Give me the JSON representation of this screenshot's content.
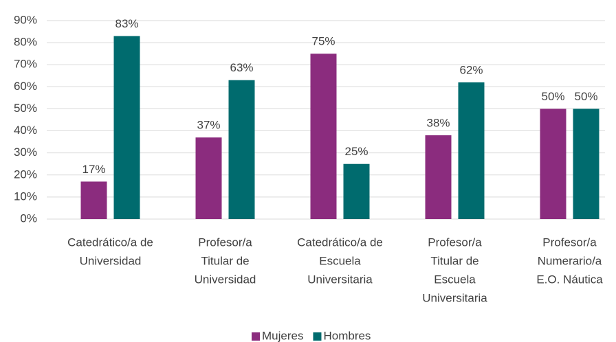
{
  "chart_data": {
    "type": "bar",
    "categories": [
      [
        "Catedrático/a de",
        "Universidad"
      ],
      [
        "Profesor/a",
        "Titular de",
        "Universidad"
      ],
      [
        "Catedrático/a de",
        "Escuela",
        "Universitaria"
      ],
      [
        "Profesor/a",
        "Titular de",
        "Escuela",
        "Universitaria"
      ],
      [
        "Profesor/a",
        "Numerario/a",
        "E.O. Náutica"
      ]
    ],
    "series": [
      {
        "name": "Mujeres",
        "color": "#8b2c7e",
        "values": [
          17,
          37,
          75,
          38,
          50
        ],
        "value_labels": [
          "17%",
          "37%",
          "75%",
          "38%",
          "50%"
        ]
      },
      {
        "name": "Hombres",
        "color": "#006b6e",
        "values": [
          83,
          63,
          25,
          62,
          50
        ],
        "value_labels": [
          "83%",
          "63%",
          "25%",
          "62%",
          "50%"
        ]
      }
    ],
    "ylim": [
      0,
      90
    ],
    "yticks": [
      {
        "value": 0,
        "label": "0%"
      },
      {
        "value": 10,
        "label": "10%"
      },
      {
        "value": 20,
        "label": "20%"
      },
      {
        "value": 30,
        "label": "30%"
      },
      {
        "value": 40,
        "label": "40%"
      },
      {
        "value": 50,
        "label": "50%"
      },
      {
        "value": 60,
        "label": "60%"
      },
      {
        "value": 70,
        "label": "70%"
      },
      {
        "value": 80,
        "label": "80%"
      },
      {
        "value": 90,
        "label": "90%"
      }
    ],
    "grid": true,
    "legend": "bottom"
  }
}
